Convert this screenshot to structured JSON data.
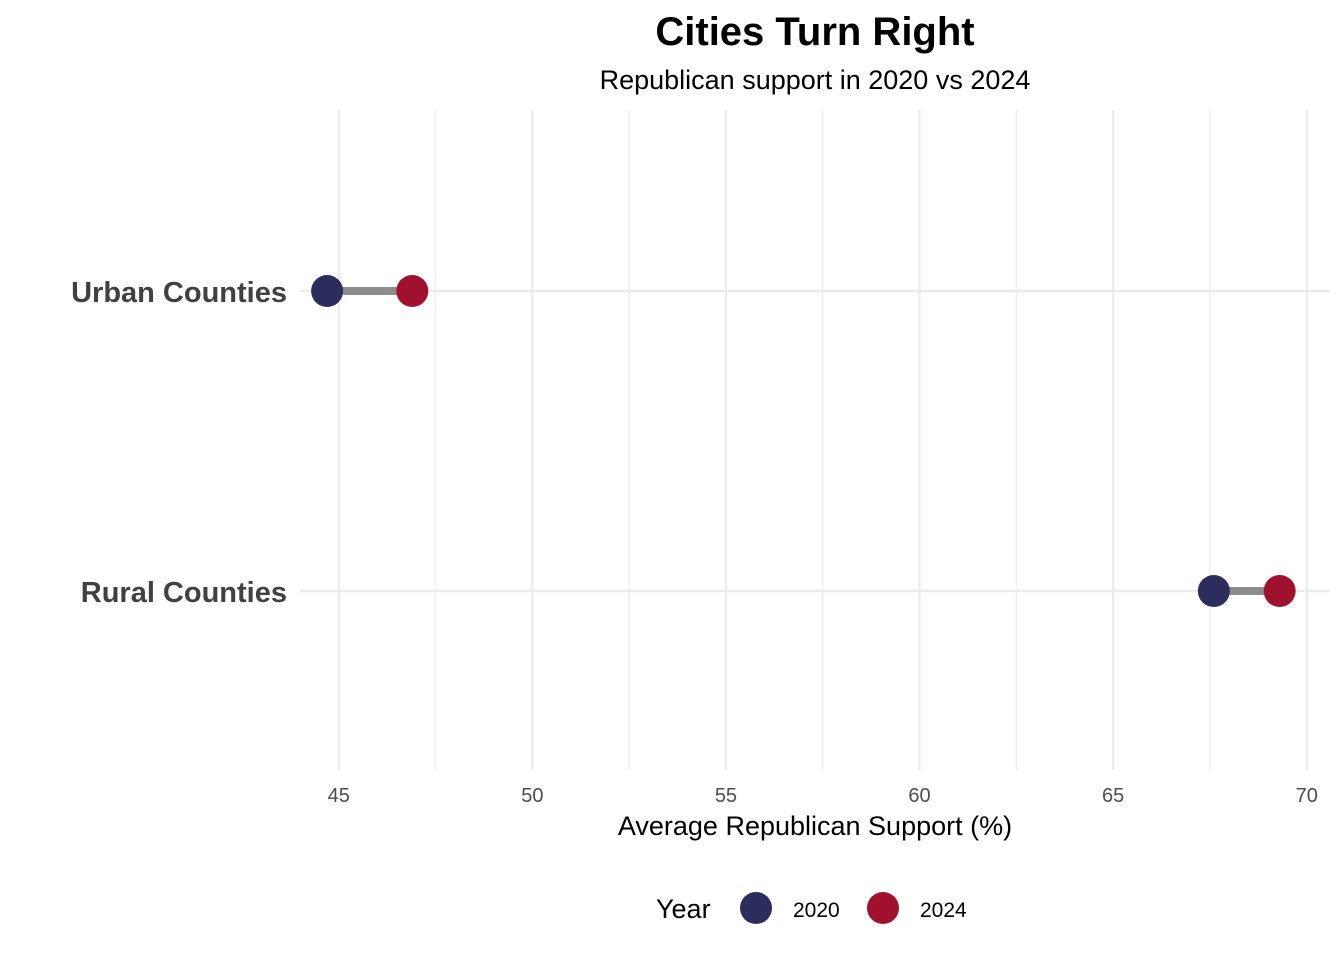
{
  "chart_data": {
    "type": "dumbbell",
    "title": "Cities Turn Right",
    "subtitle": "Republican support in 2020 vs 2024",
    "xlabel": "Average Republican Support (%)",
    "ylabel": "",
    "xlim": [
      44,
      70.6
    ],
    "x_ticks": [
      45,
      50,
      55,
      60,
      65,
      70
    ],
    "x_tick_labels": [
      "45",
      "50",
      "55",
      "60",
      "65",
      "70"
    ],
    "grid": true,
    "categories": [
      "Urban Counties",
      "Rural Counties"
    ],
    "series": [
      {
        "name": "2020",
        "color": "#2b2d5c",
        "values": [
          44.7,
          67.6
        ]
      },
      {
        "name": "2024",
        "color": "#a0112e",
        "values": [
          46.9,
          69.3
        ]
      }
    ],
    "connector_color": "#8c8c8c",
    "legend": {
      "title": "Year",
      "position": "bottom",
      "items": [
        "2020",
        "2024"
      ]
    }
  }
}
